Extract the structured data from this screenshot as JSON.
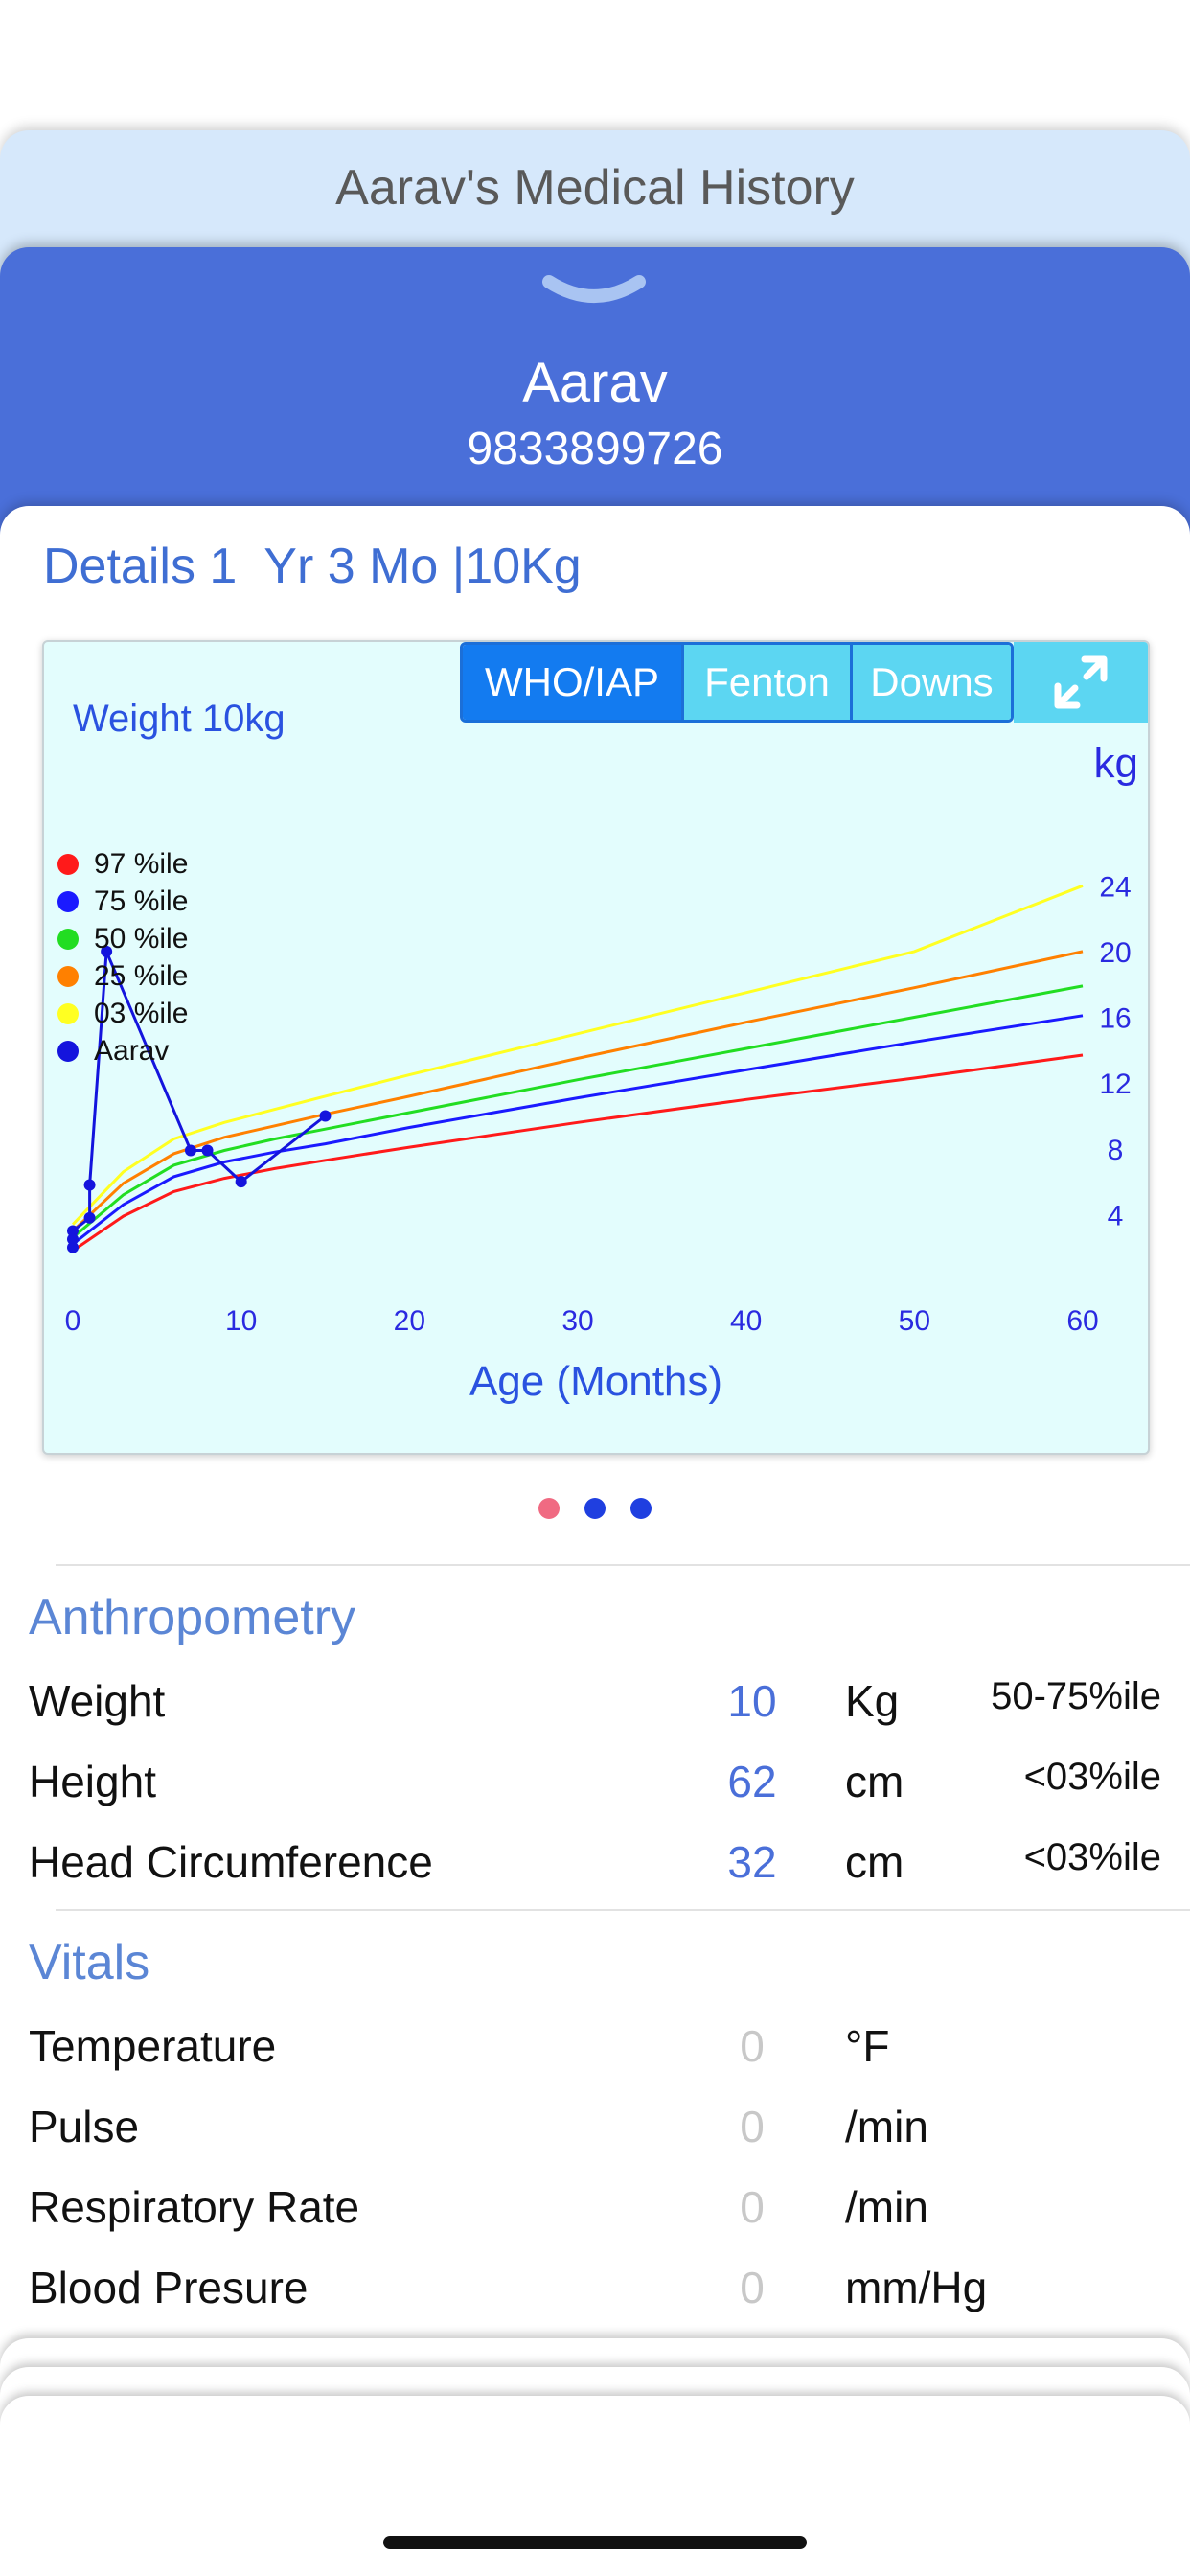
{
  "history": {
    "title": "Aarav's Medical History"
  },
  "patient": {
    "name": "Aarav",
    "phone": "9833899726"
  },
  "details": {
    "title": "Details 1  Yr 3 Mo |10Kg"
  },
  "chart_tabs": [
    "WHO/IAP",
    "Fenton",
    "Downs"
  ],
  "chart_tabs_selected": "WHO/IAP",
  "colors": {
    "accent_blue": "#4a6fd9",
    "header_light": "#d6e8fb",
    "chart_bg": "#e3fdfd",
    "selected_tab": "#137bf0",
    "unselected_tab": "#5cd6f2",
    "page_dot_active": "#f06a82",
    "page_dot": "#1f3fe0"
  },
  "icons": {
    "collapse": "chevron-down-icon",
    "expand": "expand-arrows-icon"
  },
  "chart_data": {
    "type": "line",
    "title": "Weight 10kg",
    "xlabel": "Age (Months)",
    "ylabel": "kg",
    "xlim": [
      0,
      60
    ],
    "ylim": [
      0,
      26
    ],
    "xticks": [
      "0",
      "10",
      "20",
      "30",
      "40",
      "50",
      "60"
    ],
    "yticks": [
      "4",
      "8",
      "12",
      "16",
      "20",
      "24"
    ],
    "grid": false,
    "legend_position": "left",
    "series": [
      {
        "name": "97 %ile",
        "color": "#ff1a1a",
        "x": [
          0,
          3,
          6,
          9,
          12,
          15,
          20,
          30,
          40,
          50,
          60
        ],
        "y": [
          1.8,
          3.9,
          5.4,
          6.2,
          6.8,
          7.3,
          8.1,
          9.6,
          11.0,
          12.3,
          13.7
        ]
      },
      {
        "name": "75 %ile",
        "color": "#1a1aff",
        "x": [
          0,
          3,
          6,
          9,
          12,
          15,
          20,
          30,
          40,
          50,
          60
        ],
        "y": [
          2.2,
          4.6,
          6.3,
          7.2,
          7.8,
          8.3,
          9.3,
          11.1,
          12.8,
          14.5,
          16.1
        ]
      },
      {
        "name": "50 %ile",
        "color": "#22dd22",
        "x": [
          0,
          3,
          6,
          9,
          12,
          15,
          20,
          30,
          40,
          50,
          60
        ],
        "y": [
          2.6,
          5.2,
          7.0,
          7.9,
          8.6,
          9.2,
          10.2,
          12.2,
          14.1,
          16.0,
          17.9
        ]
      },
      {
        "name": "25 %ile",
        "color": "#ff8000",
        "x": [
          0,
          3,
          6,
          9,
          12,
          15,
          20,
          30,
          40,
          50,
          60
        ],
        "y": [
          3.0,
          5.9,
          7.7,
          8.7,
          9.4,
          10.1,
          11.2,
          13.5,
          15.7,
          17.8,
          20.0
        ]
      },
      {
        "name": "03 %ile",
        "color": "#ffff22",
        "x": [
          0,
          3,
          6,
          9,
          12,
          15,
          20,
          30,
          40,
          50,
          60
        ],
        "y": [
          3.4,
          6.6,
          8.6,
          9.6,
          10.4,
          11.2,
          12.5,
          15.0,
          17.5,
          20.0,
          24.0
        ]
      },
      {
        "name": "Aarav",
        "color": "#1414dd",
        "markers": true,
        "x": [
          0,
          0,
          0,
          1,
          1,
          2,
          7,
          8,
          10,
          15
        ],
        "y": [
          2.0,
          2.5,
          3.0,
          3.8,
          5.8,
          20.0,
          7.9,
          7.9,
          6.0,
          10.0
        ]
      }
    ]
  },
  "pager": {
    "count": 3,
    "active": 0
  },
  "anthropometry": {
    "title": "Anthropometry",
    "rows": [
      {
        "label": "Weight",
        "value": "10",
        "unit": "Kg",
        "percentile": "50-75%ile"
      },
      {
        "label": "Height",
        "value": "62",
        "unit": "cm",
        "percentile": "<03%ile"
      },
      {
        "label": "Head Circumference",
        "value": "32",
        "unit": "cm",
        "percentile": "<03%ile"
      }
    ]
  },
  "vitals": {
    "title": "Vitals",
    "rows": [
      {
        "label": "Temperature",
        "value": "0",
        "unit": "°F"
      },
      {
        "label": "Pulse",
        "value": "0",
        "unit": "/min"
      },
      {
        "label": "Respiratory Rate",
        "value": "0",
        "unit": "/min"
      },
      {
        "label": "Blood Presure",
        "value": "0",
        "unit": "mm/Hg"
      }
    ]
  }
}
